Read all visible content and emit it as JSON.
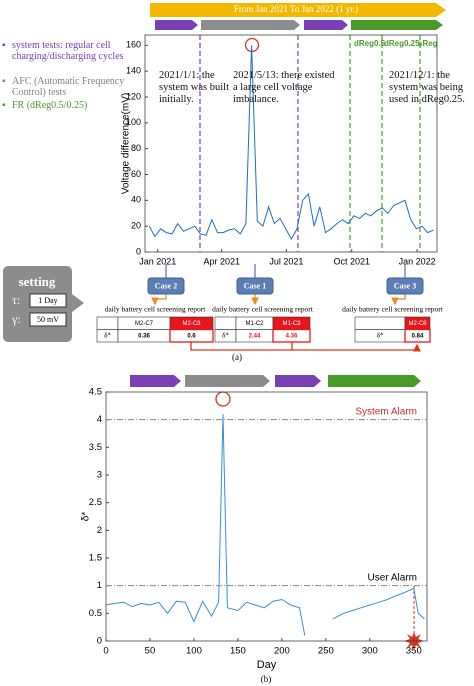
{
  "banner": "From Jan 2021 To Jan 2022 (1 yr.)",
  "legend": [
    {
      "text": "system tests: regular cell charging/discharging cycles",
      "color": "#7a3fb5"
    },
    {
      "text": "AFC (Automatic Frequency Control) tests",
      "color": "#808080"
    },
    {
      "text": "FR (dReg0.5/0.25)",
      "color": "#4a9a2a"
    }
  ],
  "setting": {
    "title": "setting",
    "rows": [
      {
        "symbol": "τ:",
        "value": "1 Day"
      },
      {
        "symbol": "γ:",
        "value": "50 mV"
      }
    ]
  },
  "cases": [
    {
      "label": "Case 2",
      "report": {
        "title": "daily battery cell screening report",
        "symbol": "δ*",
        "header": [
          "M2-C7",
          "M2-C8"
        ],
        "row": [
          "0.36",
          "0.6"
        ]
      }
    },
    {
      "label": "Case 1",
      "report": {
        "title": "daily battery cell screening report",
        "symbol": "δ*",
        "header": [
          "M1-C2",
          "M1-C3"
        ],
        "row": [
          "2.44",
          "4.36"
        ]
      }
    },
    {
      "label": "Case 3",
      "report": {
        "title": "daily battery cell screening report",
        "symbol": "δ*",
        "header": [
          "M2-C8"
        ],
        "row": [
          "0.84"
        ]
      }
    }
  ],
  "captions": [
    "(a)",
    "(b)"
  ],
  "chart_data": [
    {
      "type": "line",
      "y_label": "Voltage difference(mV)",
      "phase_labels": [
        "dReg0.5",
        "dReg0.25",
        "sReg"
      ],
      "annotations": [
        "2021/1/1: the system was built initially.",
        "2021/5/13: there existed a large cell voltage imbalance.",
        "2021/12/1: the system was being used in dReg0.25."
      ],
      "xlim": [
        -18,
        393
      ],
      "xticks": [
        {
          "value": 0,
          "label": "Jan 2021"
        },
        {
          "value": 90,
          "label": "Apr 2021"
        },
        {
          "value": 181,
          "label": "Jul 2021"
        },
        {
          "value": 273,
          "label": "Oct 2021"
        },
        {
          "value": 365,
          "label": "Jan 2022"
        }
      ],
      "ylim": [
        0,
        168
      ],
      "yticks": [
        0,
        20,
        40,
        60,
        80,
        100,
        120,
        140,
        160
      ],
      "x": [
        -12,
        -4,
        4,
        12,
        20,
        28,
        36,
        44,
        52,
        60,
        68,
        76,
        84,
        92,
        100,
        108,
        116,
        124,
        132,
        140,
        148,
        156,
        164,
        172,
        180,
        188,
        196,
        204,
        212,
        220,
        228,
        236,
        244,
        252,
        260,
        268,
        276,
        284,
        292,
        300,
        308,
        316,
        324,
        332,
        340,
        348,
        356,
        364,
        372,
        380,
        388
      ],
      "series": [
        {
          "color": "#1f6fbf",
          "values": [
            20,
            12,
            18,
            15,
            14,
            22,
            16,
            18,
            20,
            14,
            13,
            25,
            15,
            15,
            17,
            18,
            14,
            22,
            160,
            24,
            20,
            35,
            22,
            26,
            18,
            10,
            18,
            40,
            45,
            20,
            35,
            15,
            18,
            22,
            25,
            22,
            28,
            26,
            30,
            28,
            32,
            34,
            30,
            36,
            38,
            40,
            25,
            18,
            20,
            15,
            17
          ]
        }
      ]
    },
    {
      "type": "line",
      "x_label": "Day",
      "y_label": "δ*",
      "xlim": [
        0,
        365
      ],
      "xticks": [
        0,
        50,
        100,
        150,
        200,
        250,
        300,
        350
      ],
      "ylim": [
        0,
        4.5
      ],
      "yticks": [
        0,
        0.5,
        1,
        1.5,
        2,
        2.5,
        3,
        3.5,
        4,
        4.5
      ],
      "thresholds": [
        {
          "label": "System Alarm",
          "value": 4,
          "color": "#d62728"
        },
        {
          "label": "User Alarm",
          "value": 1,
          "color": "#000000"
        }
      ],
      "x": [
        0,
        10,
        20,
        30,
        40,
        50,
        60,
        70,
        80,
        90,
        100,
        110,
        120,
        128,
        133,
        138,
        150,
        160,
        170,
        180,
        190,
        200,
        210,
        220,
        226,
        240,
        258,
        270,
        280,
        290,
        300,
        310,
        320,
        330,
        340,
        350,
        355,
        362
      ],
      "series": [
        {
          "color": "#3a8fd0",
          "values": [
            0.65,
            0.68,
            0.7,
            0.62,
            0.68,
            0.65,
            0.7,
            0.5,
            0.72,
            0.7,
            0.35,
            0.72,
            0.45,
            0.7,
            4.1,
            0.6,
            0.55,
            0.7,
            0.65,
            0.6,
            0.72,
            0.75,
            0.65,
            0.6,
            0.1,
            null,
            0.4,
            0.5,
            0.55,
            0.6,
            0.65,
            0.7,
            0.75,
            0.82,
            0.88,
            0.95,
            0.5,
            0.4
          ]
        }
      ]
    }
  ]
}
